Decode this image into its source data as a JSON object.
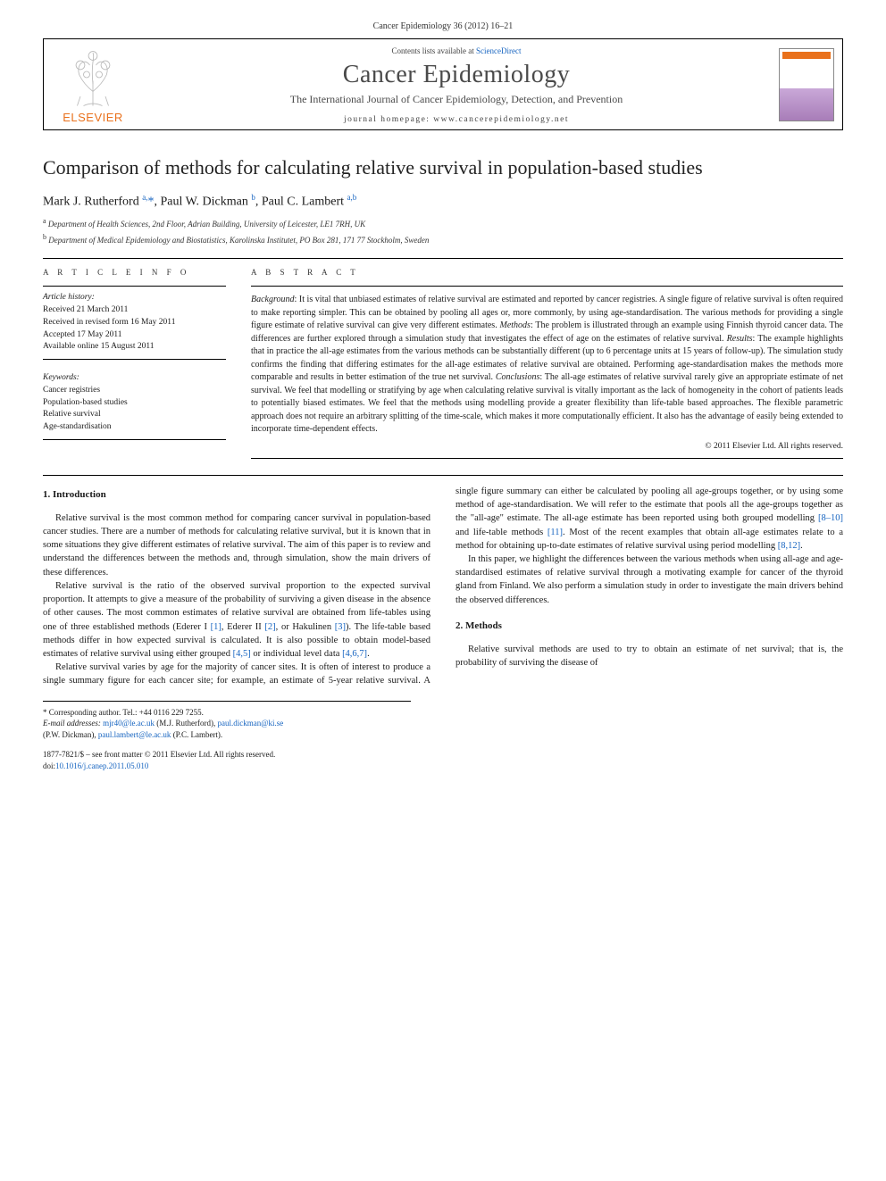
{
  "top_citation": "Cancer Epidemiology 36 (2012) 16–21",
  "header": {
    "contents_prefix": "Contents lists available at ",
    "contents_link": "ScienceDirect",
    "journal_name": "Cancer Epidemiology",
    "journal_sub": "The International Journal of Cancer Epidemiology, Detection, and Prevention",
    "homepage_label": "journal homepage: www.cancerepidemiology.net",
    "publisher": "ELSEVIER"
  },
  "title": "Comparison of methods for calculating relative survival in population-based studies",
  "authors_html": "Mark J. Rutherford <sup>a,</sup><span class='ast'>*</span>, Paul W. Dickman <sup>b</sup>, Paul C. Lambert <sup>a,b</sup>",
  "affiliations": [
    {
      "sup": "a",
      "text": "Department of Health Sciences, 2nd Floor, Adrian Building, University of Leicester, LE1 7RH, UK"
    },
    {
      "sup": "b",
      "text": "Department of Medical Epidemiology and Biostatistics, Karolinska Institutet, PO Box 281, 171 77 Stockholm, Sweden"
    }
  ],
  "article_info": {
    "head": "A R T I C L E   I N F O",
    "history_label": "Article history:",
    "history": [
      "Received 21 March 2011",
      "Received in revised form 16 May 2011",
      "Accepted 17 May 2011",
      "Available online 15 August 2011"
    ],
    "keywords_label": "Keywords:",
    "keywords": [
      "Cancer registries",
      "Population-based studies",
      "Relative survival",
      "Age-standardisation"
    ]
  },
  "abstract": {
    "head": "A B S T R A C T",
    "text": "<span class='ital'>Background</span>: It is vital that unbiased estimates of relative survival are estimated and reported by cancer registries. A single figure of relative survival is often required to make reporting simpler. This can be obtained by pooling all ages or, more commonly, by using age-standardisation. The various methods for providing a single figure estimate of relative survival can give very different estimates. <span class='ital'>Methods</span>: The problem is illustrated through an example using Finnish thyroid cancer data. The differences are further explored through a simulation study that investigates the effect of age on the estimates of relative survival. <span class='ital'>Results</span>: The example highlights that in practice the all-age estimates from the various methods can be substantially different (up to 6 percentage units at 15 years of follow-up). The simulation study confirms the finding that differing estimates for the all-age estimates of relative survival are obtained. Performing age-standardisation makes the methods more comparable and results in better estimation of the true net survival. <span class='ital'>Conclusions</span>: The all-age estimates of relative survival rarely give an appropriate estimate of net survival. We feel that modelling or stratifying by age when calculating relative survival is vitally important as the lack of homogeneity in the cohort of patients leads to potentially biased estimates. We feel that the methods using modelling provide a greater flexibility than life-table based approaches. The flexible parametric approach does not require an arbitrary splitting of the time-scale, which makes it more computationally efficient. It also has the advantage of easily being extended to incorporate time-dependent effects.",
    "copyright": "© 2011 Elsevier Ltd. All rights reserved."
  },
  "body": {
    "sec1_head": "1. Introduction",
    "p1": "Relative survival is the most common method for comparing cancer survival in population-based cancer studies. There are a number of methods for calculating relative survival, but it is known that in some situations they give different estimates of relative survival. The aim of this paper is to review and understand the differences between the methods and, through simulation, show the main drivers of these differences.",
    "p2": "Relative survival is the ratio of the observed survival proportion to the expected survival proportion. It attempts to give a measure of the probability of surviving a given disease in the absence of other causes. The most common estimates of relative survival are obtained from life-tables using one of three established methods (Ederer I <span class='ref'>[1]</span>, Ederer II <span class='ref'>[2]</span>, or Hakulinen <span class='ref'>[3]</span>). The life-table based methods differ in how expected survival is calculated. It is also possible to obtain model-based estimates of relative survival using either grouped <span class='ref'>[4,5]</span> or individual level data <span class='ref'>[4,6,7]</span>.",
    "p3": "Relative survival varies by age for the majority of cancer sites. It is often of interest to produce a single summary figure for each cancer site; for example, an estimate of 5-year relative survival. A single figure summary can either be calculated by pooling all age-groups together, or by using some method of age-standardisation. We will refer to the estimate that pools all the age-groups together as the \"all-age\" estimate. The all-age estimate has been reported using both grouped modelling <span class='ref'>[8–10]</span> and life-table methods <span class='ref'>[11]</span>. Most of the recent examples that obtain all-age estimates relate to a method for obtaining up-to-date estimates of relative survival using period modelling <span class='ref'>[8,12]</span>.",
    "p4": "In this paper, we highlight the differences between the various methods when using all-age and age-standardised estimates of relative survival through a motivating example for cancer of the thyroid gland from Finland. We also perform a simulation study in order to investigate the main drivers behind the observed differences.",
    "sec2_head": "2. Methods",
    "p5": "Relative survival methods are used to try to obtain an estimate of net survival; that is, the probability of surviving the disease of"
  },
  "footnotes": {
    "corr": "* Corresponding author. Tel.: +44 0116 229 7255.",
    "emails_label": "E-mail addresses:",
    "e1": "mjr40@le.ac.uk",
    "e1_who": "(M.J. Rutherford),",
    "e2": "paul.dickman@ki.se",
    "e2_who": "(P.W. Dickman),",
    "e3": "paul.lambert@le.ac.uk",
    "e3_who": "(P.C. Lambert)."
  },
  "bottom": {
    "issn": "1877-7821/$ – see front matter © 2011 Elsevier Ltd. All rights reserved.",
    "doi_label": "doi:",
    "doi": "10.1016/j.canep.2011.05.010"
  },
  "colors": {
    "link": "#1664c0",
    "elsevier_orange": "#e9711c",
    "text": "#1a1a1a",
    "heading_grey": "#4a4a4a"
  }
}
